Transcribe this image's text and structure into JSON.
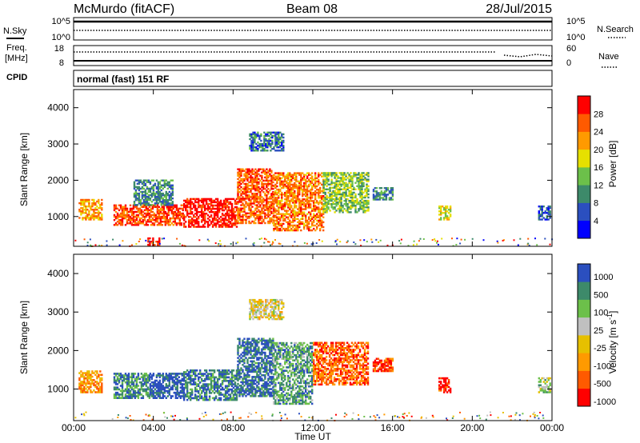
{
  "header": {
    "station": "McMurdo (fitACF)",
    "beam": "Beam 08",
    "date": "28/Jul/2015"
  },
  "strip": {
    "nsky_label": "N.Sky",
    "nsky_ticks": [
      "10^5",
      "10^0"
    ],
    "nsearch_label": "N.Search",
    "nsearch_ticks": [
      "10^5",
      "10^0"
    ],
    "freq_label": "Freq.",
    "freq_unit": "[MHz]",
    "freq_ticks": [
      "18",
      "8"
    ],
    "nave_label": "Nave",
    "nave_ticks": [
      "60",
      "0"
    ],
    "cpid_label": "CPID",
    "cpid_text": "normal (fast) 151 RF"
  },
  "colors": {
    "power": [
      "#0000ff",
      "#2b4fbf",
      "#3d8a6a",
      "#6cc04a",
      "#e6e000",
      "#ff9a00",
      "#ff5a00",
      "#ff0000"
    ],
    "velocity": [
      "#ff0000",
      "#ff5a00",
      "#ff9a00",
      "#e6c000",
      "#c0c0c0",
      "#6cc04a",
      "#3d8a6a",
      "#2b4fbf"
    ],
    "groundscatter": "#9a9a9a"
  },
  "chart_data": [
    {
      "type": "heatmap",
      "name": "power",
      "ylabel": "Slant Range [km]",
      "yticks": [
        "1000",
        "2000",
        "3000",
        "4000"
      ],
      "ylim": [
        180,
        4500
      ],
      "colorbar_label": "Power [dB]",
      "colorbar_ticks": [
        "4",
        "8",
        "12",
        "16",
        "20",
        "24",
        "28"
      ],
      "xlim_hours": [
        0,
        24
      ],
      "echo_regions": [
        {
          "t0": 0.25,
          "t1": 1.4,
          "r0": 900,
          "r1": 1450,
          "level": 0.7
        },
        {
          "t0": 2.0,
          "t1": 5.5,
          "r0": 750,
          "r1": 1300,
          "level": 0.85
        },
        {
          "t0": 3.0,
          "t1": 5.0,
          "r0": 1300,
          "r1": 2000,
          "level": 0.3
        },
        {
          "t0": 5.5,
          "t1": 8.2,
          "r0": 700,
          "r1": 1500,
          "level": 0.95
        },
        {
          "t0": 8.2,
          "t1": 10.0,
          "r0": 800,
          "r1": 2300,
          "level": 0.8
        },
        {
          "t0": 10.0,
          "t1": 12.5,
          "r0": 600,
          "r1": 2200,
          "level": 0.75
        },
        {
          "t0": 12.5,
          "t1": 14.8,
          "r0": 1100,
          "r1": 2200,
          "level": 0.45
        },
        {
          "t0": 15.0,
          "t1": 16.0,
          "r0": 1450,
          "r1": 1800,
          "level": 0.3
        },
        {
          "t0": 8.8,
          "t1": 10.5,
          "r0": 2800,
          "r1": 3300,
          "level": 0.25
        },
        {
          "t0": 18.3,
          "t1": 18.9,
          "r0": 900,
          "r1": 1300,
          "level": 0.55
        },
        {
          "t0": 23.3,
          "t1": 23.9,
          "r0": 900,
          "r1": 1300,
          "level": 0.2
        },
        {
          "t0": 3.7,
          "t1": 4.3,
          "r0": 200,
          "r1": 400,
          "level": 0.95
        }
      ]
    },
    {
      "type": "heatmap",
      "name": "velocity",
      "ylabel": "Slant Range [km]",
      "yticks": [
        "1000",
        "2000",
        "3000",
        "4000"
      ],
      "ylim": [
        180,
        4500
      ],
      "colorbar_label": "Velocity [m s^-1]",
      "colorbar_ticks": [
        "1000",
        "500",
        "100",
        "25",
        "-25",
        "-100",
        "-500",
        "-1000"
      ],
      "xlim_hours": [
        0,
        24
      ],
      "xticks": [
        "00:00",
        "04:00",
        "08:00",
        "12:00",
        "16:00",
        "20:00",
        "00:00"
      ],
      "xlabel": "Time UT",
      "echo_regions": [
        {
          "t0": 0.25,
          "t1": 1.4,
          "r0": 900,
          "r1": 1450,
          "level": 0.3
        },
        {
          "t0": 2.0,
          "t1": 3.8,
          "r0": 750,
          "r1": 1400,
          "level": 0.8
        },
        {
          "t0": 3.8,
          "t1": 5.5,
          "r0": 750,
          "r1": 1400,
          "level": 0.95
        },
        {
          "t0": 5.5,
          "t1": 8.2,
          "r0": 700,
          "r1": 1500,
          "level": 0.85
        },
        {
          "t0": 8.2,
          "t1": 10.0,
          "r0": 800,
          "r1": 2300,
          "level": 0.9
        },
        {
          "t0": 10.0,
          "t1": 12.0,
          "r0": 600,
          "r1": 2200,
          "level": 0.75
        },
        {
          "t0": 12.0,
          "t1": 14.8,
          "r0": 1100,
          "r1": 2200,
          "level": 0.2
        },
        {
          "t0": 15.0,
          "t1": 16.0,
          "r0": 1450,
          "r1": 1800,
          "level": 0.15
        },
        {
          "t0": 8.8,
          "t1": 10.5,
          "r0": 2800,
          "r1": 3300,
          "level": 0.5
        },
        {
          "t0": 18.3,
          "t1": 18.9,
          "r0": 900,
          "r1": 1300,
          "level": 0.1
        },
        {
          "t0": 23.3,
          "t1": 23.9,
          "r0": 900,
          "r1": 1300,
          "level": 0.6
        }
      ]
    }
  ]
}
